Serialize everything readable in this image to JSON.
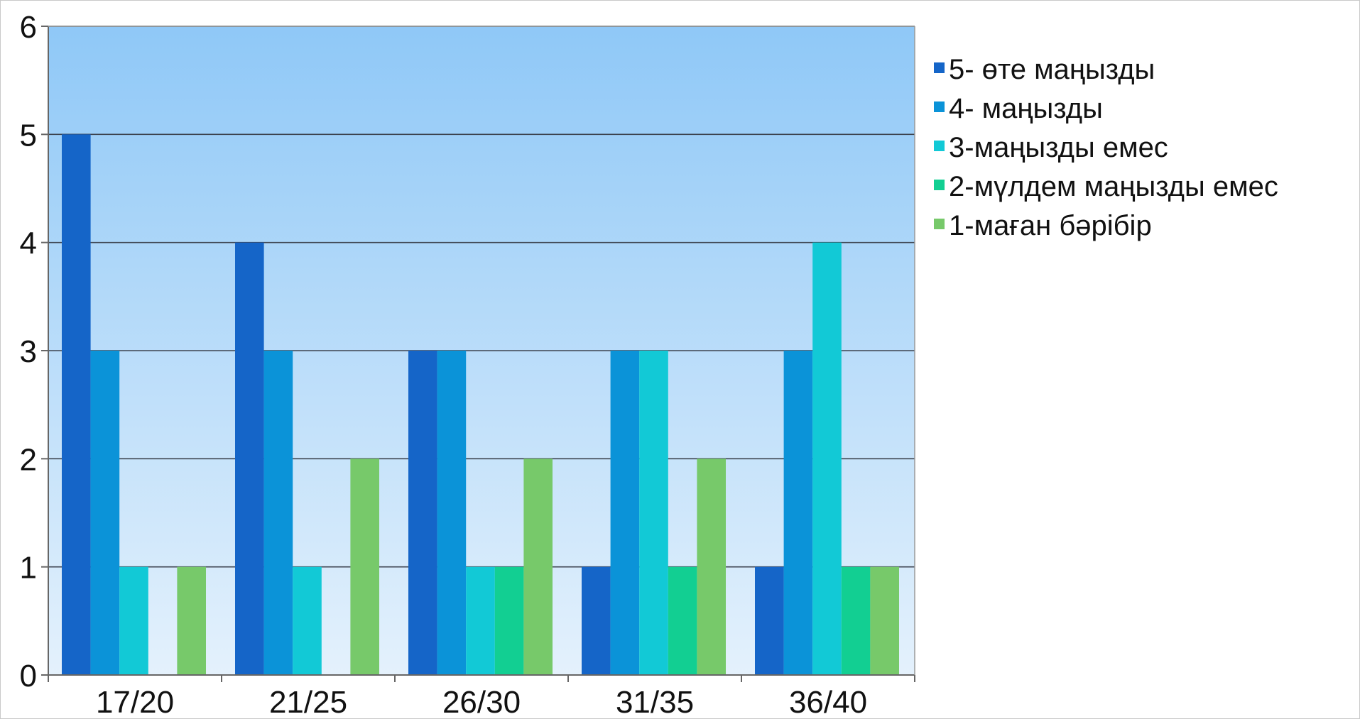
{
  "chart_data": {
    "type": "bar",
    "categories": [
      "17/20",
      "21/25",
      "26/30",
      "31/35",
      "36/40"
    ],
    "series": [
      {
        "name": "5- өте маңызды",
        "color": "#1565c8",
        "values": [
          5,
          4,
          3,
          1,
          1
        ]
      },
      {
        "name": "4- маңызды",
        "color": "#0b93d8",
        "values": [
          3,
          3,
          3,
          3,
          3
        ]
      },
      {
        "name": "3-маңызды емес",
        "color": "#12c9d6",
        "values": [
          1,
          1,
          1,
          3,
          4
        ]
      },
      {
        "name": "2-мүлдем маңызды емес",
        "color": "#12cf92",
        "values": [
          0,
          0,
          1,
          1,
          1
        ]
      },
      {
        "name": "1-маған бәрібір",
        "color": "#77c96a",
        "values": [
          1,
          2,
          2,
          2,
          1
        ]
      }
    ],
    "ylim": [
      0,
      6
    ],
    "yticks": [
      0,
      1,
      2,
      3,
      4,
      5,
      6
    ],
    "grid": true,
    "legend": "right",
    "plot_background": [
      "#8fc8f7",
      "#e4f1fc"
    ]
  }
}
